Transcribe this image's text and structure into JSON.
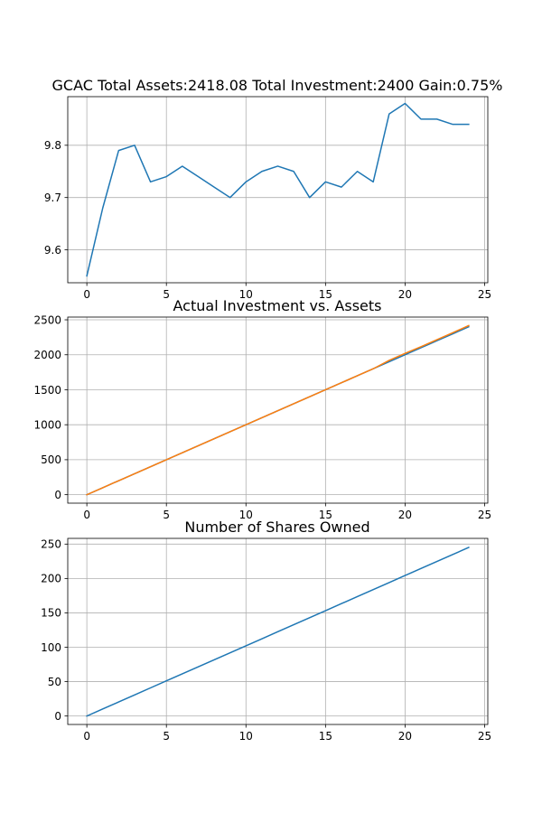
{
  "chart_data": [
    {
      "type": "line",
      "title": "GCAC Total Assets:2418.08  Total Investment:2400  Gain:0.75%",
      "xlabel": "",
      "ylabel": "",
      "xlim": [
        -1.2,
        25.2
      ],
      "ylim": [
        9.537,
        9.893
      ],
      "xticks": [
        0,
        5,
        10,
        15,
        20,
        25
      ],
      "yticks": [
        9.6,
        9.7,
        9.8
      ],
      "ytick_labels": [
        "9.6",
        "9.7",
        "9.8"
      ],
      "grid": true,
      "series": [
        {
          "color": "#1f77b4",
          "x": [
            0,
            1,
            2,
            3,
            4,
            5,
            6,
            7,
            8,
            9,
            10,
            11,
            12,
            13,
            14,
            15,
            16,
            17,
            18,
            19,
            20,
            21,
            22,
            23,
            24
          ],
          "values": [
            9.55,
            9.68,
            9.79,
            9.8,
            9.73,
            9.74,
            9.76,
            9.74,
            9.72,
            9.7,
            9.73,
            9.75,
            9.76,
            9.75,
            9.7,
            9.73,
            9.72,
            9.75,
            9.73,
            9.86,
            9.88,
            9.85,
            9.85,
            9.84,
            9.84
          ]
        }
      ]
    },
    {
      "type": "line",
      "title": "Actual Investment vs. Assets",
      "xlabel": "",
      "ylabel": "",
      "xlim": [
        -1.2,
        25.2
      ],
      "ylim": [
        -121,
        2539
      ],
      "xticks": [
        0,
        5,
        10,
        15,
        20,
        25
      ],
      "yticks": [
        0,
        500,
        1000,
        1500,
        2000,
        2500
      ],
      "ytick_labels": [
        "0",
        "500",
        "1000",
        "1500",
        "2000",
        "2500"
      ],
      "grid": true,
      "series": [
        {
          "color": "#1f77b4",
          "x": [
            0,
            1,
            2,
            3,
            4,
            5,
            6,
            7,
            8,
            9,
            10,
            11,
            12,
            13,
            14,
            15,
            16,
            17,
            18,
            19,
            20,
            21,
            22,
            23,
            24
          ],
          "values": [
            0,
            100,
            200,
            300,
            400,
            500,
            600,
            700,
            800,
            900,
            1000,
            1100,
            1200,
            1300,
            1400,
            1500,
            1600,
            1700,
            1800,
            1900,
            2000,
            2100,
            2200,
            2300,
            2400
          ]
        },
        {
          "color": "#ff7f0e",
          "x": [
            0,
            1,
            2,
            3,
            4,
            5,
            6,
            7,
            8,
            9,
            10,
            11,
            12,
            13,
            14,
            15,
            16,
            17,
            18,
            19,
            20,
            21,
            22,
            23,
            24
          ],
          "values": [
            0,
            100,
            200,
            300,
            400,
            500,
            600,
            700,
            800,
            900,
            1000,
            1100,
            1200,
            1300,
            1400,
            1500,
            1600,
            1700,
            1800,
            1920,
            2020,
            2115,
            2215,
            2315,
            2418
          ]
        }
      ]
    },
    {
      "type": "line",
      "title": "Number of Shares Owned",
      "xlabel": "",
      "ylabel": "",
      "xlim": [
        -1.2,
        25.2
      ],
      "ylim": [
        -12.3,
        258.3
      ],
      "xticks": [
        0,
        5,
        10,
        15,
        20,
        25
      ],
      "yticks": [
        0,
        50,
        100,
        150,
        200,
        250
      ],
      "ytick_labels": [
        "0",
        "50",
        "100",
        "150",
        "200",
        "250"
      ],
      "grid": true,
      "series": [
        {
          "color": "#1f77b4",
          "x": [
            0,
            1,
            2,
            3,
            4,
            5,
            6,
            7,
            8,
            9,
            10,
            11,
            12,
            13,
            14,
            15,
            16,
            17,
            18,
            19,
            20,
            21,
            22,
            23,
            24
          ],
          "values": [
            0,
            10.2,
            20.4,
            30.6,
            40.9,
            51.1,
            61.3,
            71.5,
            81.7,
            91.9,
            102.1,
            112.3,
            122.6,
            132.8,
            143.0,
            153.2,
            163.4,
            173.6,
            183.8,
            194.0,
            204.3,
            214.5,
            224.7,
            234.9,
            245.1
          ]
        }
      ]
    }
  ]
}
